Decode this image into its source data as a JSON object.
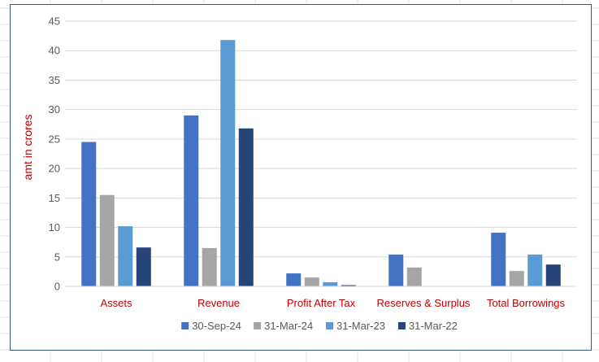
{
  "chart_data": {
    "type": "bar",
    "title": "",
    "xlabel": "",
    "ylabel": "amt in crores",
    "ylim": [
      0,
      45
    ],
    "yticks": [
      0,
      5,
      10,
      15,
      20,
      25,
      30,
      35,
      40,
      45
    ],
    "grid": true,
    "legend_position": "bottom",
    "categories": [
      "Assets",
      "Revenue",
      "Profit After Tax",
      "Reserves & Surplus",
      "Total Borrowings"
    ],
    "series": [
      {
        "name": "30-Sep-24",
        "color": "#4472c4",
        "values": [
          24.5,
          29.0,
          2.2,
          5.4,
          9.1
        ]
      },
      {
        "name": "31-Mar-24",
        "color": "#a5a5a5",
        "values": [
          15.5,
          6.5,
          1.5,
          3.2,
          2.6
        ]
      },
      {
        "name": "31-Mar-23",
        "color": "#5b9bd5",
        "values": [
          10.2,
          41.8,
          0.7,
          0,
          5.4
        ]
      },
      {
        "name": "31-Mar-22",
        "color": "#264478",
        "values": [
          6.6,
          26.8,
          0.2,
          0,
          3.7
        ]
      }
    ]
  }
}
